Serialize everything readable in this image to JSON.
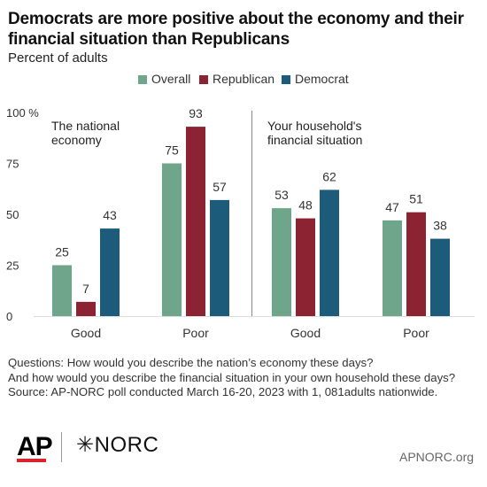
{
  "title": "Democrats are more positive about the economy and their financial situation than Republicans",
  "subtitle": "Percent of adults",
  "colors": {
    "Overall": "#6fa58a",
    "Republican": "#8b2332",
    "Democrat": "#1c5b7a"
  },
  "chart_data": {
    "type": "bar",
    "ylim": [
      0,
      100
    ],
    "yticks": [
      "0",
      "25",
      "50",
      "75",
      "100 %"
    ],
    "grid": false,
    "legend": "top",
    "series": [
      {
        "name": "Overall",
        "values": [
          25,
          75,
          53,
          47
        ]
      },
      {
        "name": "Republican",
        "values": [
          7,
          93,
          48,
          51
        ]
      },
      {
        "name": "Democrat",
        "values": [
          43,
          57,
          62,
          38
        ]
      }
    ],
    "categories": [
      "Good",
      "Poor",
      "Good",
      "Poor"
    ],
    "panels": [
      {
        "label_line1": "The national",
        "label_line2": "economy"
      },
      {
        "label_line1": "Your household's",
        "label_line2": "financial situation"
      }
    ]
  },
  "notes": [
    "Questions: How would you describe the nation’s economy these days?",
    "And how would you describe the financial situation in your own household these days?",
    "Source: AP-NORC poll conducted March 16-20, 2023 with 1, 081adults nationwide."
  ],
  "logos": {
    "ap": "AP",
    "norc": "✳NORC",
    "site": "APNORC.org"
  }
}
